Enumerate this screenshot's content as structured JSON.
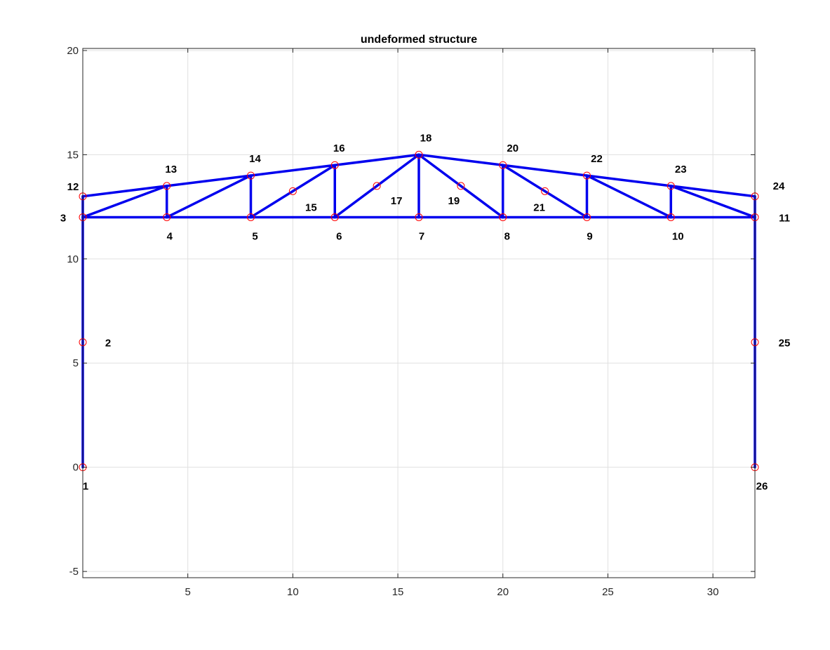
{
  "chart_data": {
    "type": "line",
    "title": "undeformed structure",
    "xlabel": "",
    "ylabel": "",
    "xlim": [
      0,
      32
    ],
    "ylim": [
      -5.3,
      20.1
    ],
    "xticks": [
      5,
      10,
      15,
      20,
      25,
      30
    ],
    "yticks": [
      -5,
      0,
      5,
      10,
      15,
      20
    ],
    "grid": true,
    "colors": {
      "members": "#0000ee",
      "nodes": "#ff0000",
      "axes": "#262626",
      "grid": "#e0e0e0"
    },
    "nodes": [
      {
        "id": "1",
        "x": 0,
        "y": 0
      },
      {
        "id": "2",
        "x": 0,
        "y": 6
      },
      {
        "id": "3",
        "x": 0,
        "y": 12
      },
      {
        "id": "4",
        "x": 4,
        "y": 12
      },
      {
        "id": "5",
        "x": 8,
        "y": 12
      },
      {
        "id": "6",
        "x": 12,
        "y": 12
      },
      {
        "id": "7",
        "x": 16,
        "y": 12
      },
      {
        "id": "8",
        "x": 20,
        "y": 12
      },
      {
        "id": "9",
        "x": 24,
        "y": 12
      },
      {
        "id": "10",
        "x": 28,
        "y": 12
      },
      {
        "id": "11",
        "x": 32,
        "y": 12
      },
      {
        "id": "12",
        "x": 0,
        "y": 13
      },
      {
        "id": "13",
        "x": 4,
        "y": 13.5
      },
      {
        "id": "14",
        "x": 8,
        "y": 14
      },
      {
        "id": "15",
        "x": 10,
        "y": 13.25
      },
      {
        "id": "16",
        "x": 12,
        "y": 14.5
      },
      {
        "id": "17",
        "x": 14,
        "y": 13.5
      },
      {
        "id": "18",
        "x": 16,
        "y": 15
      },
      {
        "id": "19",
        "x": 18,
        "y": 13.5
      },
      {
        "id": "20",
        "x": 20,
        "y": 14.5
      },
      {
        "id": "21",
        "x": 22,
        "y": 13.25
      },
      {
        "id": "22",
        "x": 24,
        "y": 14
      },
      {
        "id": "23",
        "x": 28,
        "y": 13.5
      },
      {
        "id": "24",
        "x": 32,
        "y": 13
      },
      {
        "id": "25",
        "x": 32,
        "y": 6
      },
      {
        "id": "26",
        "x": 32,
        "y": 0
      }
    ],
    "members": [
      [
        "1",
        "2"
      ],
      [
        "2",
        "3"
      ],
      [
        "3",
        "12"
      ],
      [
        "26",
        "25"
      ],
      [
        "25",
        "11"
      ],
      [
        "11",
        "24"
      ],
      [
        "3",
        "4"
      ],
      [
        "4",
        "5"
      ],
      [
        "5",
        "6"
      ],
      [
        "6",
        "7"
      ],
      [
        "7",
        "8"
      ],
      [
        "8",
        "9"
      ],
      [
        "9",
        "10"
      ],
      [
        "10",
        "11"
      ],
      [
        "12",
        "13"
      ],
      [
        "13",
        "14"
      ],
      [
        "14",
        "16"
      ],
      [
        "16",
        "18"
      ],
      [
        "18",
        "20"
      ],
      [
        "20",
        "22"
      ],
      [
        "22",
        "23"
      ],
      [
        "23",
        "24"
      ],
      [
        "4",
        "13"
      ],
      [
        "5",
        "14"
      ],
      [
        "6",
        "16"
      ],
      [
        "7",
        "18"
      ],
      [
        "8",
        "20"
      ],
      [
        "9",
        "22"
      ],
      [
        "10",
        "23"
      ],
      [
        "3",
        "13"
      ],
      [
        "4",
        "14"
      ],
      [
        "5",
        "15"
      ],
      [
        "15",
        "16"
      ],
      [
        "6",
        "17"
      ],
      [
        "17",
        "18"
      ],
      [
        "18",
        "19"
      ],
      [
        "19",
        "8"
      ],
      [
        "20",
        "21"
      ],
      [
        "21",
        "9"
      ],
      [
        "22",
        "10"
      ],
      [
        "23",
        "11"
      ]
    ]
  }
}
